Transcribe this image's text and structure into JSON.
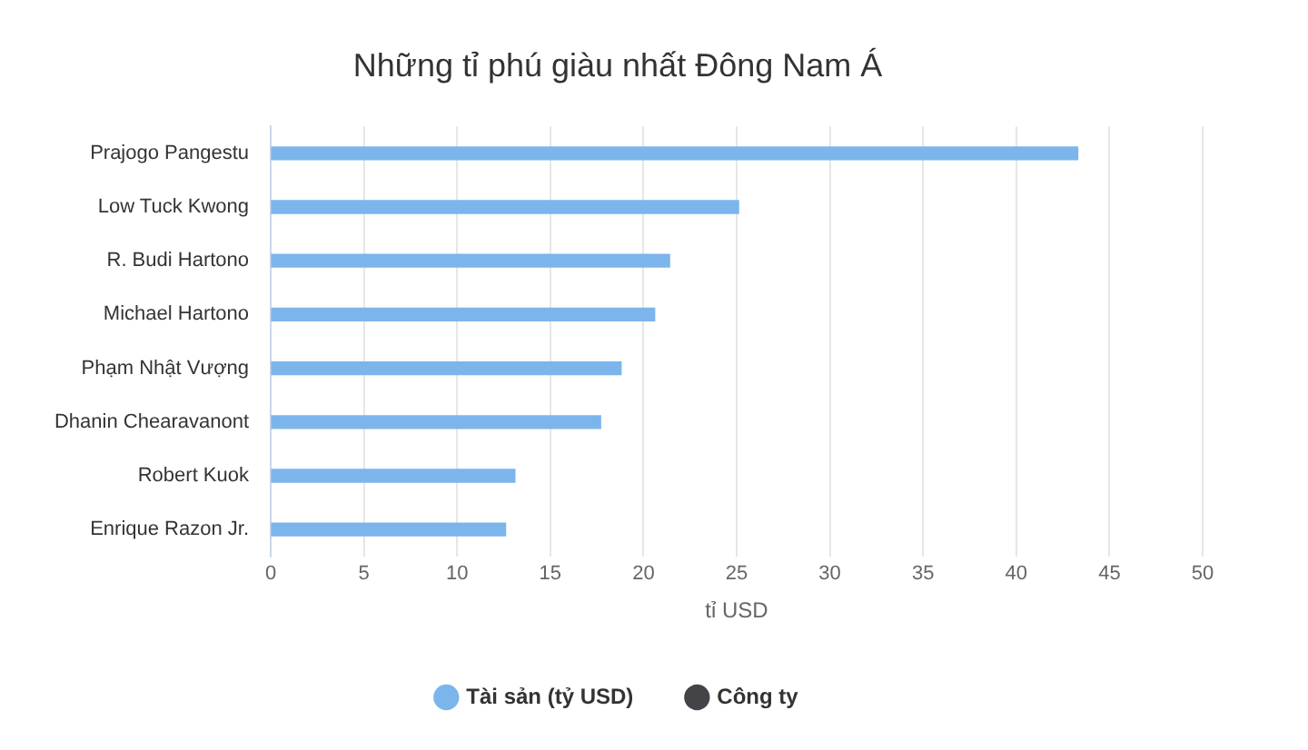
{
  "chart_data": {
    "type": "bar",
    "orientation": "horizontal",
    "title": "Những tỉ phú giàu nhất Đông Nam Á",
    "xlabel": "tỉ USD",
    "categories": [
      "Prajogo Pangestu",
      "Low Tuck Kwong",
      "R. Budi Hartono",
      "Michael Hartono",
      "Phạm Nhật Vượng",
      "Dhanin Chearavanont",
      "Robert Kuok",
      "Enrique Razon Jr."
    ],
    "series": [
      {
        "name": "Tài sản (tỷ USD)",
        "color": "#7cb5ec",
        "values": [
          43.3,
          25.1,
          21.4,
          20.6,
          18.8,
          17.7,
          13.1,
          12.6
        ]
      },
      {
        "name": "Công ty",
        "color": "#434348",
        "values": [
          null,
          null,
          null,
          null,
          null,
          null,
          null,
          null
        ]
      }
    ],
    "xlim": [
      0,
      50
    ],
    "xticks": [
      0,
      5,
      10,
      15,
      20,
      25,
      30,
      35,
      40,
      45,
      50
    ],
    "grid": "x",
    "legend": "bottom"
  }
}
